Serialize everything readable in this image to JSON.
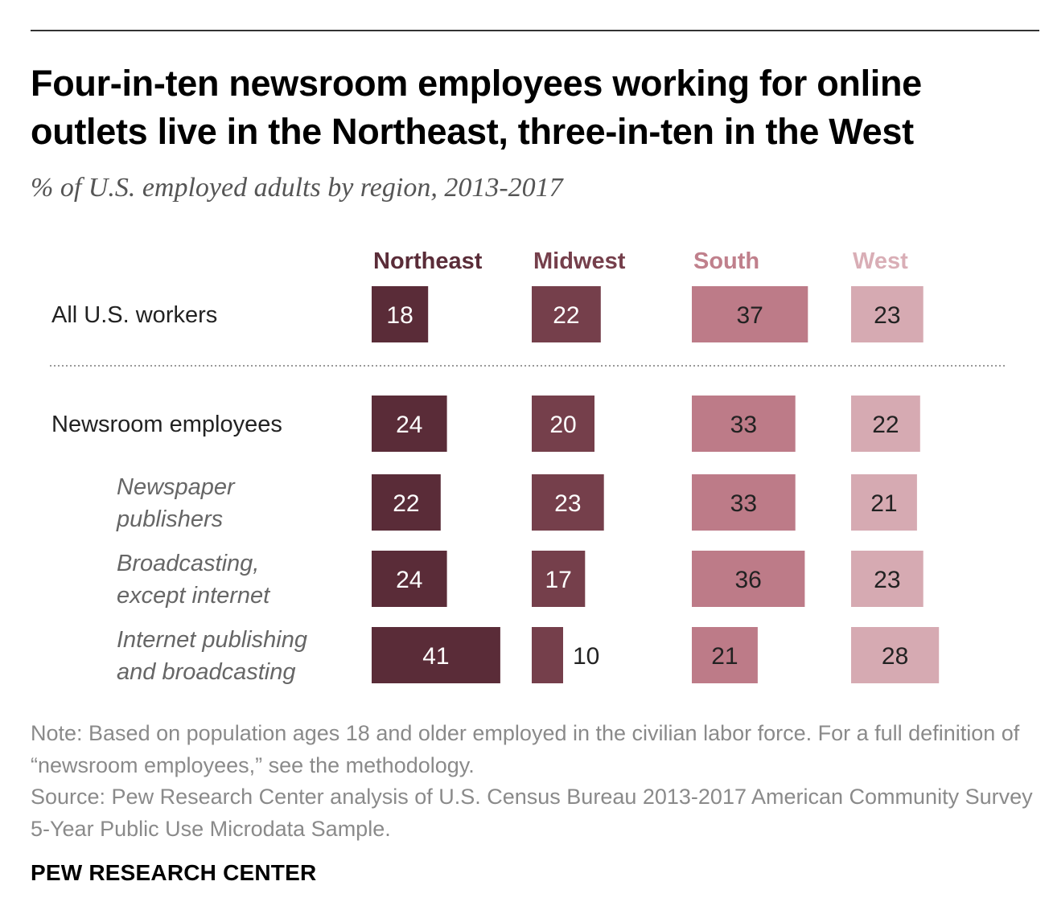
{
  "chart_data": {
    "type": "bar",
    "title": "Four-in-ten newsroom employees working for online outlets live in the Northeast, three-in-ten in the West",
    "subtitle": "% of U.S. employed adults by region, 2013-2017",
    "categories": [
      "Northeast",
      "Midwest",
      "South",
      "West"
    ],
    "colors": [
      "#5a2c38",
      "#753f4b",
      "#bd7b88",
      "#d6aab2"
    ],
    "header_colors": [
      "#5a2c38",
      "#753f4b",
      "#c0808c",
      "#d9aeb6"
    ],
    "rows": [
      {
        "label_lines": [
          "All U.S. workers"
        ],
        "italic": false,
        "values": [
          18,
          22,
          37,
          23
        ]
      },
      {
        "label_lines": [
          "Newsroom employees"
        ],
        "italic": false,
        "values": [
          24,
          20,
          33,
          22
        ]
      },
      {
        "label_lines": [
          "Newspaper",
          "publishers"
        ],
        "italic": true,
        "values": [
          22,
          23,
          33,
          21
        ]
      },
      {
        "label_lines": [
          "Broadcasting,",
          "except internet"
        ],
        "italic": true,
        "values": [
          24,
          17,
          36,
          23
        ]
      },
      {
        "label_lines": [
          "Internet publishing",
          "and broadcasting"
        ],
        "italic": true,
        "values": [
          41,
          10,
          21,
          28
        ]
      }
    ]
  },
  "note_line": "Note: Based on population ages 18 and older employed in the civilian labor force. For a full definition of “newsroom employees,” see the methodology.",
  "source_line": "Source: Pew Research Center analysis of U.S. Census Bureau 2013-2017 American Community Survey 5-Year Public Use Microdata Sample.",
  "brand": "PEW RESEARCH CENTER"
}
